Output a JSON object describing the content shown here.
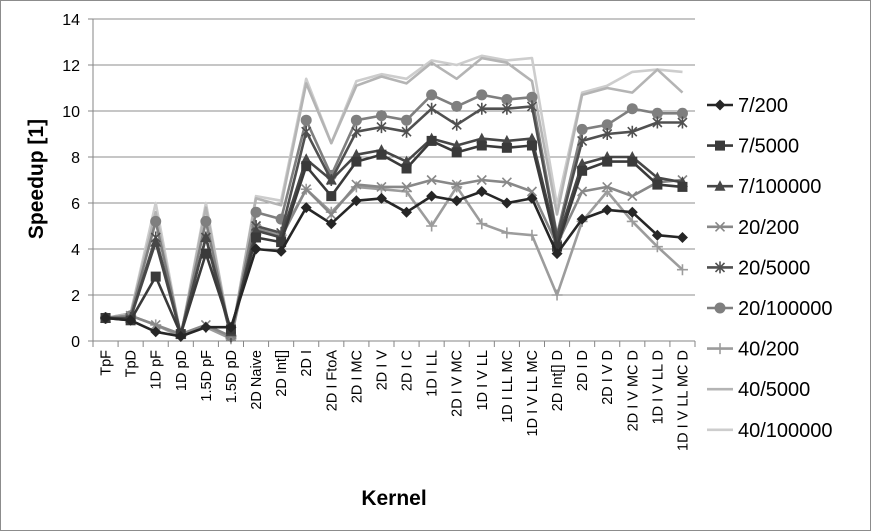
{
  "chart_data": {
    "type": "line",
    "title": "",
    "xlabel": "Kernel",
    "ylabel": "Speedup [1]",
    "ylim": [
      0,
      14
    ],
    "yticks": [
      0,
      2,
      4,
      6,
      8,
      10,
      12,
      14
    ],
    "grid": "horizontal",
    "legend_position": "right",
    "categories": [
      "TpF",
      "TpD",
      "1D pF",
      "1D pD",
      "1.5D pF",
      "1.5D pD",
      "2D Naive",
      "2D Int[]",
      "2D I",
      "2D I FtoA",
      "2D I MC",
      "2D I V",
      "2D I C",
      "1D I LL",
      "2D I V MC",
      "1D I V LL",
      "1D I LL MC",
      "1D I V LL MC",
      "2D Int[] D",
      "2D I D",
      "2D I V D",
      "2D I V MC D",
      "1D I V LL D",
      "1D I V LL MC D"
    ],
    "series": [
      {
        "name": "7/200",
        "color": "#262626",
        "marker": "diamond",
        "values": [
          1.0,
          0.9,
          0.4,
          0.2,
          0.6,
          0.6,
          4.0,
          3.9,
          5.8,
          5.1,
          6.1,
          6.2,
          5.6,
          6.3,
          6.1,
          6.5,
          6.0,
          6.2,
          3.8,
          5.3,
          5.7,
          5.6,
          4.6,
          4.5
        ]
      },
      {
        "name": "7/5000",
        "color": "#3a3a3a",
        "marker": "square",
        "values": [
          1.0,
          0.9,
          2.8,
          0.3,
          3.8,
          0.5,
          4.5,
          4.3,
          7.6,
          6.3,
          7.8,
          8.1,
          7.5,
          8.7,
          8.2,
          8.5,
          8.4,
          8.5,
          4.1,
          7.4,
          7.8,
          7.8,
          6.8,
          6.7
        ]
      },
      {
        "name": "7/100000",
        "color": "#474747",
        "marker": "triangle",
        "values": [
          1.0,
          1.0,
          4.3,
          0.3,
          4.5,
          0.4,
          4.8,
          4.5,
          7.9,
          7.0,
          8.1,
          8.3,
          7.8,
          8.8,
          8.5,
          8.8,
          8.7,
          8.8,
          4.3,
          7.7,
          8.0,
          8.0,
          7.1,
          6.9
        ]
      },
      {
        "name": "20/200",
        "color": "#888888",
        "marker": "x",
        "values": [
          1.0,
          1.1,
          0.7,
          0.3,
          0.7,
          0.2,
          4.9,
          4.5,
          6.6,
          5.5,
          6.8,
          6.7,
          6.7,
          7.0,
          6.8,
          7.0,
          6.9,
          6.5,
          4.2,
          6.5,
          6.7,
          6.3,
          6.9,
          7.0
        ]
      },
      {
        "name": "20/5000",
        "color": "#505050",
        "marker": "star",
        "values": [
          1.0,
          1.0,
          4.5,
          0.3,
          4.5,
          0.2,
          5.0,
          4.7,
          9.1,
          7.0,
          9.1,
          9.3,
          9.1,
          10.1,
          9.4,
          10.1,
          10.1,
          10.2,
          4.5,
          8.7,
          9.0,
          9.1,
          9.5,
          9.5
        ]
      },
      {
        "name": "20/100000",
        "color": "#7f7f7f",
        "marker": "circle",
        "values": [
          1.0,
          1.1,
          5.2,
          0.3,
          5.2,
          0.2,
          5.6,
          5.3,
          9.6,
          7.2,
          9.6,
          9.8,
          9.6,
          10.7,
          10.2,
          10.7,
          10.5,
          10.6,
          4.6,
          9.2,
          9.4,
          10.1,
          9.9,
          9.9
        ]
      },
      {
        "name": "40/200",
        "color": "#9c9c9c",
        "marker": "plus",
        "values": [
          1.0,
          1.1,
          0.7,
          0.2,
          0.6,
          0.1,
          5.0,
          4.6,
          6.6,
          5.6,
          6.7,
          6.6,
          6.5,
          5.0,
          6.7,
          5.1,
          4.7,
          4.6,
          2.0,
          5.2,
          6.5,
          5.2,
          4.1,
          3.1
        ]
      },
      {
        "name": "40/5000",
        "color": "#b4b4b4",
        "marker": "none",
        "values": [
          1.0,
          1.2,
          5.6,
          0.2,
          5.8,
          0.1,
          6.2,
          5.9,
          11.2,
          8.6,
          11.1,
          11.5,
          11.2,
          12.1,
          11.4,
          12.3,
          12.1,
          11.3,
          5.5,
          10.7,
          11.0,
          10.8,
          11.8,
          10.8
        ]
      },
      {
        "name": "40/100000",
        "color": "#cdcdcd",
        "marker": "none",
        "values": [
          1.0,
          1.2,
          6.0,
          0.2,
          6.0,
          0.1,
          6.3,
          6.1,
          11.4,
          8.6,
          11.3,
          11.6,
          11.4,
          12.2,
          12.0,
          12.4,
          12.2,
          12.3,
          5.9,
          10.8,
          11.1,
          11.7,
          11.8,
          11.7
        ]
      }
    ]
  }
}
